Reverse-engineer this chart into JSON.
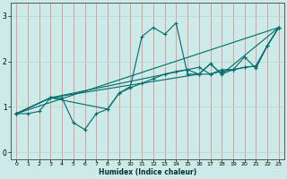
{
  "xlabel": "Humidex (Indice chaleur)",
  "bg_color": "#cceae7",
  "line_color": "#006b6b",
  "grid_color_v": "#e08080",
  "grid_color_h": "#b0d8d4",
  "xlim": [
    -0.5,
    23.5
  ],
  "ylim": [
    -0.15,
    3.3
  ],
  "xticks": [
    0,
    1,
    2,
    3,
    4,
    5,
    6,
    7,
    8,
    9,
    10,
    11,
    12,
    13,
    14,
    15,
    16,
    17,
    18,
    19,
    20,
    21,
    22,
    23
  ],
  "yticks": [
    0,
    1,
    2,
    3
  ],
  "line1_x": [
    0,
    1,
    2,
    3,
    4,
    5,
    6,
    7,
    8,
    9,
    10,
    11,
    12,
    13,
    14,
    15,
    16,
    17,
    18,
    19,
    20,
    21,
    22,
    23
  ],
  "line1_y": [
    0.85,
    0.85,
    0.9,
    1.2,
    1.2,
    0.65,
    0.5,
    0.85,
    0.95,
    1.3,
    1.45,
    2.55,
    2.75,
    2.6,
    2.85,
    1.72,
    1.72,
    1.72,
    1.82,
    1.82,
    2.1,
    1.85,
    2.35,
    2.75
  ],
  "line2_x": [
    0,
    3,
    8,
    9,
    10,
    11,
    12,
    13,
    14,
    15,
    16,
    17,
    18,
    19,
    20,
    21,
    22,
    23
  ],
  "line2_y": [
    0.85,
    1.2,
    0.95,
    1.3,
    1.42,
    1.52,
    1.62,
    1.72,
    1.78,
    1.82,
    1.87,
    1.72,
    1.78,
    1.82,
    1.87,
    1.9,
    2.35,
    2.75
  ],
  "line3_x": [
    0,
    23
  ],
  "line3_y": [
    0.85,
    2.75
  ],
  "line4_x": [
    0,
    3,
    16,
    17,
    18,
    23
  ],
  "line4_y": [
    0.85,
    1.2,
    1.72,
    1.95,
    1.72,
    2.75
  ],
  "line5_x": [
    0,
    3,
    15,
    16,
    17,
    18,
    19,
    20,
    21,
    22,
    23
  ],
  "line5_y": [
    0.85,
    1.2,
    1.82,
    1.72,
    1.95,
    1.72,
    1.82,
    1.87,
    1.9,
    2.35,
    2.75
  ]
}
